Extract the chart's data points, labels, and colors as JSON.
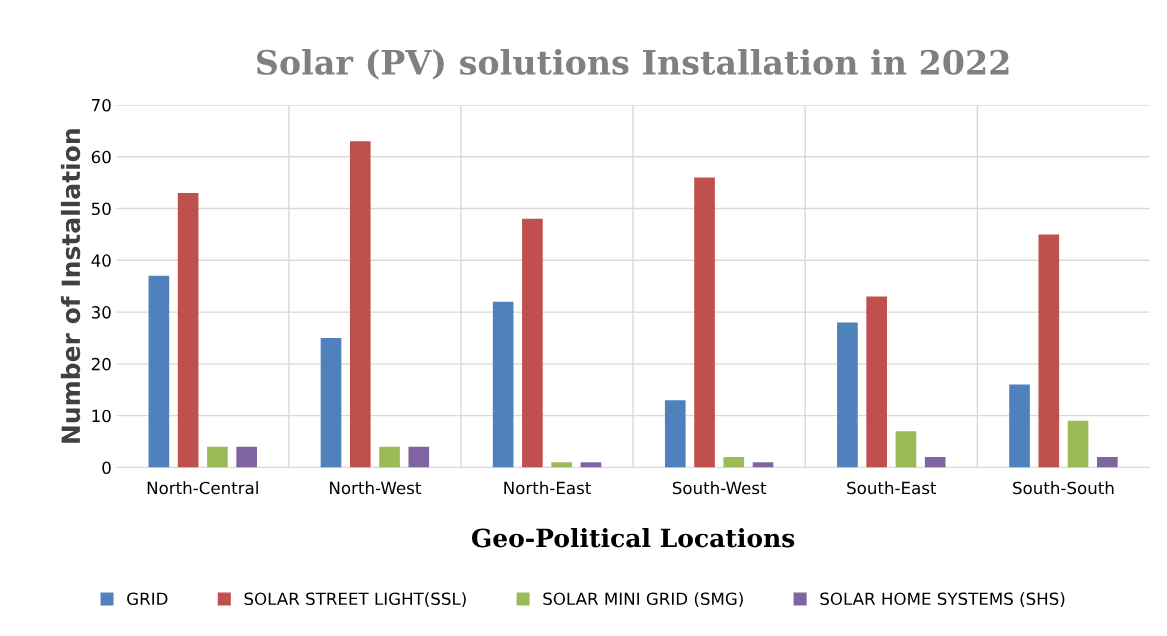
{
  "chart_data": {
    "type": "bar",
    "title": "Solar (PV) solutions Installation in 2022",
    "xlabel": "Geo-Political Locations",
    "ylabel": "Number of Installation",
    "categories": [
      "North-Central",
      "North-West",
      "North-East",
      "South-West",
      "South-East",
      "South-South"
    ],
    "series": [
      {
        "name": "GRID",
        "color": "#4f81bd",
        "values": [
          37,
          25,
          32,
          13,
          28,
          16
        ]
      },
      {
        "name": "SOLAR STREET LIGHT(SSL)",
        "color": "#c0504d",
        "values": [
          53,
          63,
          48,
          56,
          33,
          45
        ]
      },
      {
        "name": "SOLAR MINI GRID (SMG)",
        "color": "#9bbb59",
        "values": [
          4,
          4,
          1,
          2,
          7,
          9
        ]
      },
      {
        "name": "SOLAR HOME SYSTEMS (SHS)",
        "color": "#8064a2",
        "values": [
          4,
          4,
          1,
          1,
          2,
          2
        ]
      }
    ],
    "ylim": [
      0,
      70
    ],
    "yticks": [
      0,
      10,
      20,
      30,
      40,
      50,
      60,
      70
    ],
    "grid": true,
    "legend": "bottom"
  }
}
